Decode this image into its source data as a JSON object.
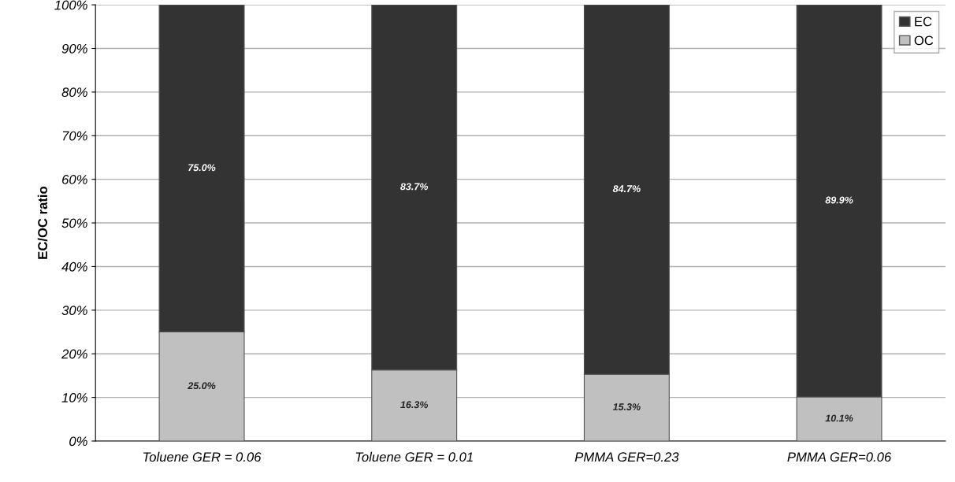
{
  "chart_data": {
    "type": "bar",
    "stacked": true,
    "ylabel": "EC/OC ratio",
    "categories": [
      "Toluene GER = 0.06",
      "Toluene GER = 0.01",
      "PMMA GER=0.23",
      "PMMA GER=0.06"
    ],
    "series": [
      {
        "name": "OC",
        "color": "#c0c0c0",
        "values": [
          25.0,
          16.3,
          15.3,
          10.1
        ],
        "value_labels": [
          "25.0%",
          "16.3%",
          "15.3%",
          "10.1%"
        ]
      },
      {
        "name": "EC",
        "color": "#333333",
        "values": [
          75.0,
          83.7,
          84.7,
          89.9
        ],
        "value_labels": [
          "75.0%",
          "83.7%",
          "84.7%",
          "89.9%"
        ]
      }
    ],
    "ylim": [
      0,
      100
    ],
    "yticks": [
      {
        "value": 0,
        "label": "0%"
      },
      {
        "value": 10,
        "label": "10%"
      },
      {
        "value": 20,
        "label": "20%"
      },
      {
        "value": 30,
        "label": "30%"
      },
      {
        "value": 40,
        "label": "40%"
      },
      {
        "value": 50,
        "label": "50%"
      },
      {
        "value": 60,
        "label": "60%"
      },
      {
        "value": 70,
        "label": "70%"
      },
      {
        "value": 80,
        "label": "80%"
      },
      {
        "value": 90,
        "label": "90%"
      },
      {
        "value": 100,
        "label": "100%"
      }
    ],
    "grid": "y",
    "legend": "top right"
  }
}
